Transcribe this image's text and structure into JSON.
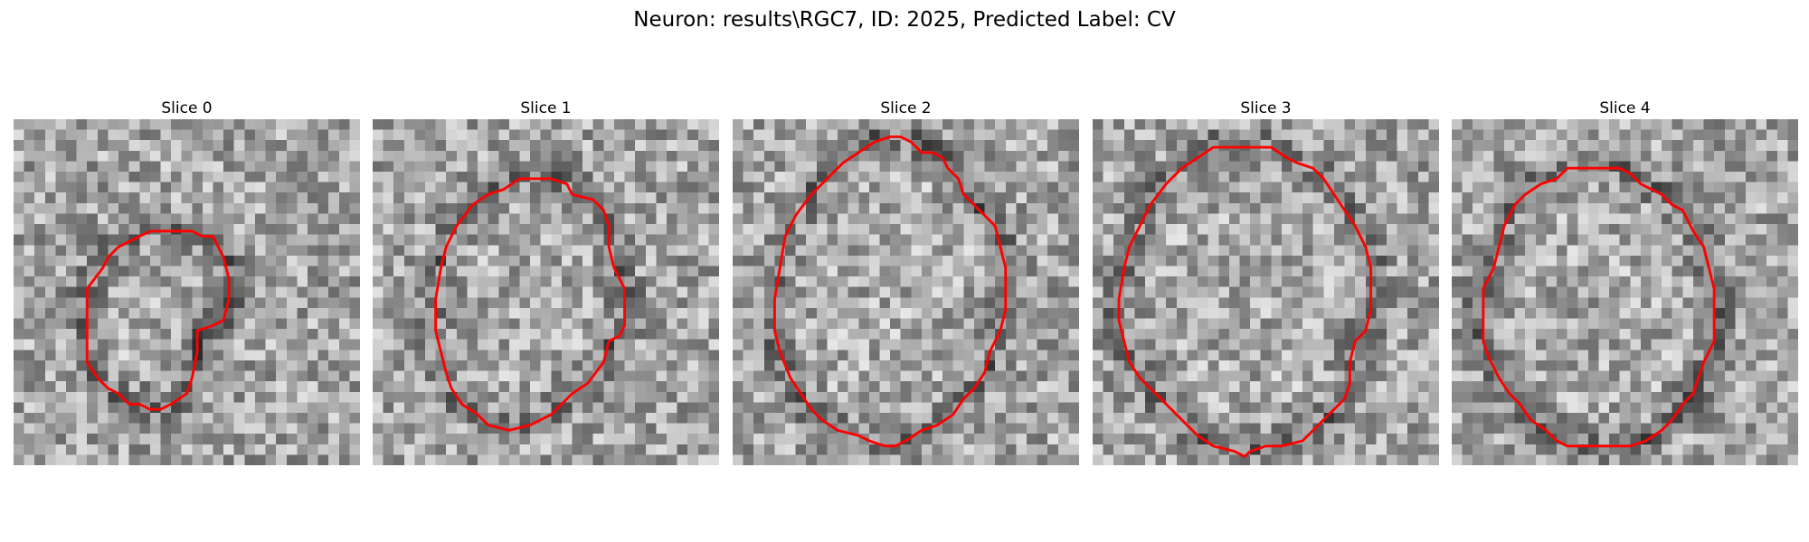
{
  "figure": {
    "title": "Neuron: results\\RGC7, ID: 2025, Predicted Label: CV",
    "contour_color": "#ff0000",
    "colormap": "gray",
    "slices": [
      {
        "title": "Slice 0",
        "seed": 11,
        "contour": [
          [
            7.0,
            20.5
          ],
          [
            7.0,
            16.0
          ],
          [
            8.5,
            14.0
          ],
          [
            9.0,
            13.0
          ],
          [
            10.0,
            12.0
          ],
          [
            12.0,
            11.0
          ],
          [
            13.0,
            10.5
          ],
          [
            15.0,
            10.5
          ],
          [
            17.0,
            10.5
          ],
          [
            18.0,
            11.0
          ],
          [
            19.0,
            11.0
          ],
          [
            19.5,
            12.0
          ],
          [
            20.0,
            13.0
          ],
          [
            20.5,
            15.0
          ],
          [
            20.5,
            17.0
          ],
          [
            20.0,
            19.0
          ],
          [
            19.0,
            19.5
          ],
          [
            17.5,
            20.0
          ],
          [
            17.5,
            22.0
          ],
          [
            17.0,
            24.5
          ],
          [
            16.5,
            26.0
          ],
          [
            15.0,
            27.0
          ],
          [
            14.0,
            27.5
          ],
          [
            13.0,
            27.5
          ],
          [
            12.0,
            27.0
          ],
          [
            11.0,
            27.0
          ],
          [
            10.0,
            26.0
          ],
          [
            9.0,
            25.5
          ],
          [
            8.0,
            24.5
          ],
          [
            7.0,
            23.0
          ],
          [
            7.0,
            20.5
          ]
        ]
      },
      {
        "title": "Slice 1",
        "seed": 23,
        "contour": [
          [
            6.0,
            17.0
          ],
          [
            6.5,
            14.0
          ],
          [
            7.0,
            12.0
          ],
          [
            8.0,
            10.0
          ],
          [
            9.5,
            8.0
          ],
          [
            11.0,
            7.0
          ],
          [
            12.5,
            6.5
          ],
          [
            14.0,
            5.5
          ],
          [
            16.0,
            5.5
          ],
          [
            17.0,
            5.5
          ],
          [
            18.5,
            6.0
          ],
          [
            19.0,
            7.0
          ],
          [
            21.0,
            7.5
          ],
          [
            22.0,
            8.5
          ],
          [
            22.5,
            10.0
          ],
          [
            22.5,
            12.0
          ],
          [
            23.0,
            14.0
          ],
          [
            24.0,
            16.0
          ],
          [
            24.0,
            18.0
          ],
          [
            24.0,
            19.5
          ],
          [
            23.5,
            20.5
          ],
          [
            22.5,
            21.0
          ],
          [
            22.0,
            23.0
          ],
          [
            20.5,
            25.0
          ],
          [
            19.0,
            26.0
          ],
          [
            18.0,
            27.0
          ],
          [
            17.0,
            28.0
          ],
          [
            15.0,
            29.0
          ],
          [
            13.0,
            29.5
          ],
          [
            11.0,
            29.0
          ],
          [
            10.0,
            28.0
          ],
          [
            8.5,
            27.0
          ],
          [
            7.5,
            25.5
          ],
          [
            7.0,
            24.0
          ],
          [
            6.5,
            22.0
          ],
          [
            6.0,
            20.0
          ],
          [
            6.0,
            17.0
          ]
        ]
      },
      {
        "title": "Slice 2",
        "seed": 37,
        "contour": [
          [
            4.0,
            17.0
          ],
          [
            4.5,
            14.0
          ],
          [
            5.0,
            11.0
          ],
          [
            6.0,
            9.0
          ],
          [
            7.5,
            7.0
          ],
          [
            9.0,
            5.5
          ],
          [
            10.5,
            4.0
          ],
          [
            12.0,
            3.0
          ],
          [
            13.5,
            2.0
          ],
          [
            15.0,
            1.5
          ],
          [
            16.0,
            1.5
          ],
          [
            17.0,
            2.0
          ],
          [
            18.0,
            3.0
          ],
          [
            19.0,
            3.0
          ],
          [
            20.0,
            3.5
          ],
          [
            20.5,
            4.5
          ],
          [
            21.5,
            5.5
          ],
          [
            22.0,
            7.0
          ],
          [
            23.0,
            8.0
          ],
          [
            24.0,
            9.0
          ],
          [
            25.0,
            10.0
          ],
          [
            25.5,
            12.0
          ],
          [
            26.0,
            14.0
          ],
          [
            26.0,
            16.0
          ],
          [
            26.0,
            18.0
          ],
          [
            25.5,
            20.0
          ],
          [
            24.5,
            22.0
          ],
          [
            24.0,
            24.0
          ],
          [
            23.0,
            25.5
          ],
          [
            22.0,
            26.5
          ],
          [
            21.0,
            28.0
          ],
          [
            19.5,
            29.0
          ],
          [
            18.0,
            29.5
          ],
          [
            16.5,
            30.5
          ],
          [
            15.5,
            31.0
          ],
          [
            14.5,
            31.0
          ],
          [
            13.0,
            30.5
          ],
          [
            12.0,
            30.0
          ],
          [
            10.0,
            29.5
          ],
          [
            8.5,
            28.5
          ],
          [
            7.5,
            27.5
          ],
          [
            6.5,
            26.0
          ],
          [
            5.5,
            24.5
          ],
          [
            4.5,
            22.0
          ],
          [
            4.0,
            20.0
          ],
          [
            4.0,
            17.0
          ]
        ]
      },
      {
        "title": "Slice 3",
        "seed": 53,
        "contour": [
          [
            2.5,
            17.0
          ],
          [
            3.0,
            14.0
          ],
          [
            3.5,
            12.0
          ],
          [
            4.5,
            10.0
          ],
          [
            5.5,
            8.0
          ],
          [
            7.0,
            6.0
          ],
          [
            8.5,
            4.5
          ],
          [
            10.0,
            3.5
          ],
          [
            11.5,
            2.5
          ],
          [
            13.0,
            2.5
          ],
          [
            15.0,
            2.5
          ],
          [
            17.0,
            2.5
          ],
          [
            18.5,
            3.5
          ],
          [
            19.5,
            4.0
          ],
          [
            21.0,
            4.5
          ],
          [
            22.0,
            5.5
          ],
          [
            23.0,
            7.0
          ],
          [
            24.0,
            8.5
          ],
          [
            25.0,
            10.0
          ],
          [
            26.0,
            12.0
          ],
          [
            26.5,
            14.0
          ],
          [
            26.5,
            16.0
          ],
          [
            26.5,
            18.0
          ],
          [
            26.0,
            20.0
          ],
          [
            25.0,
            21.0
          ],
          [
            24.5,
            23.0
          ],
          [
            24.5,
            25.0
          ],
          [
            24.0,
            26.5
          ],
          [
            23.0,
            27.5
          ],
          [
            22.0,
            28.5
          ],
          [
            21.0,
            29.5
          ],
          [
            20.0,
            30.5
          ],
          [
            18.0,
            31.0
          ],
          [
            16.5,
            31.0
          ],
          [
            15.0,
            31.5
          ],
          [
            14.5,
            32.0
          ],
          [
            13.5,
            31.5
          ],
          [
            11.5,
            31.0
          ],
          [
            10.0,
            30.0
          ],
          [
            9.0,
            29.0
          ],
          [
            7.5,
            27.5
          ],
          [
            6.0,
            26.0
          ],
          [
            4.5,
            24.5
          ],
          [
            3.5,
            23.0
          ],
          [
            3.0,
            21.0
          ],
          [
            2.5,
            19.0
          ],
          [
            2.5,
            17.0
          ]
        ]
      },
      {
        "title": "Slice 4",
        "seed": 71,
        "contour": [
          [
            3.0,
            19.0
          ],
          [
            3.0,
            16.0
          ],
          [
            4.0,
            14.0
          ],
          [
            4.5,
            12.0
          ],
          [
            5.0,
            10.0
          ],
          [
            6.0,
            8.0
          ],
          [
            7.0,
            7.0
          ],
          [
            8.5,
            6.0
          ],
          [
            10.0,
            5.5
          ],
          [
            11.0,
            4.5
          ],
          [
            12.0,
            4.5
          ],
          [
            13.5,
            4.5
          ],
          [
            15.0,
            4.5
          ],
          [
            16.0,
            4.5
          ],
          [
            17.0,
            5.0
          ],
          [
            18.0,
            6.0
          ],
          [
            19.0,
            6.5
          ],
          [
            20.0,
            7.0
          ],
          [
            21.0,
            8.0
          ],
          [
            22.0,
            8.5
          ],
          [
            23.0,
            10.5
          ],
          [
            24.0,
            12.0
          ],
          [
            24.5,
            14.0
          ],
          [
            25.0,
            16.0
          ],
          [
            25.0,
            18.5
          ],
          [
            25.0,
            21.0
          ],
          [
            24.0,
            23.0
          ],
          [
            23.5,
            24.5
          ],
          [
            23.0,
            26.0
          ],
          [
            22.0,
            27.0
          ],
          [
            21.0,
            28.5
          ],
          [
            20.0,
            29.5
          ],
          [
            18.5,
            30.5
          ],
          [
            17.0,
            31.0
          ],
          [
            15.0,
            31.0
          ],
          [
            13.0,
            31.0
          ],
          [
            11.0,
            31.0
          ],
          [
            10.0,
            30.5
          ],
          [
            9.0,
            29.5
          ],
          [
            7.5,
            28.5
          ],
          [
            6.5,
            27.0
          ],
          [
            5.5,
            26.0
          ],
          [
            4.5,
            24.5
          ],
          [
            3.5,
            22.5
          ],
          [
            3.0,
            21.0
          ],
          [
            3.0,
            19.0
          ]
        ]
      }
    ]
  }
}
